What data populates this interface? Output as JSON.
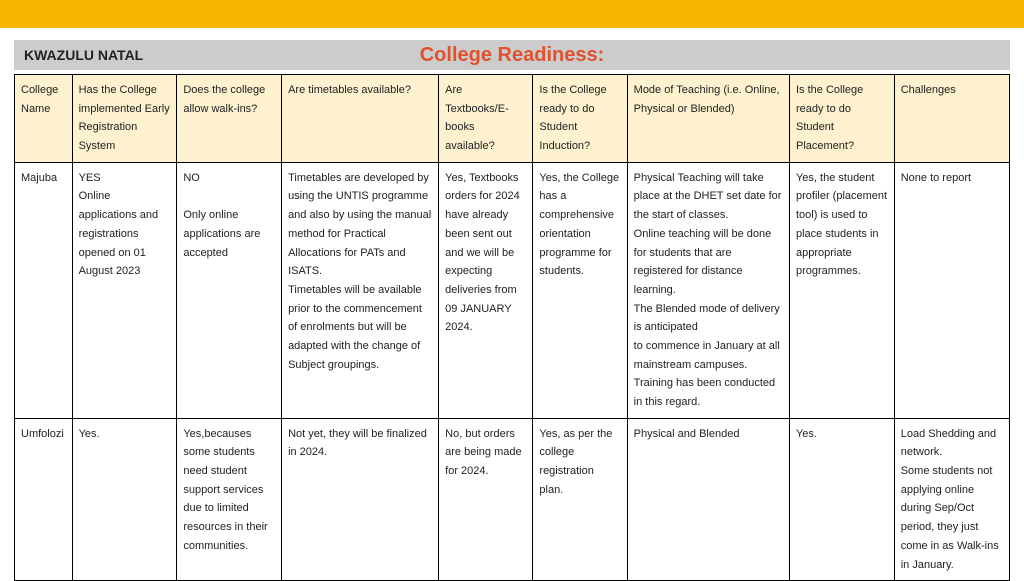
{
  "top_bar_color": "#f7b500",
  "header_bg": "#cccccc",
  "title_color": "#e0522e",
  "th_bg": "#fdf1cf",
  "region": "KWAZULU NATAL",
  "title": "College Readiness:",
  "columns": [
    "College Name",
    "Has the College implemented Early Registration System",
    "Does the college allow walk-ins?",
    "Are timetables available?",
    "Are Textbooks/E-books available?",
    "Is the College ready to do Student Induction?",
    "Mode of Teaching (i.e. Online, Physical or Blended)",
    "Is the College ready to do Student Placement?",
    "Challenges"
  ],
  "rows": [
    {
      "c0": "Majuba",
      "c1": "YES\nOnline applications and registrations opened on 01 August 2023",
      "c2": "NO\n\nOnly online applications are accepted",
      "c3": "Timetables are developed by using the UNTIS programme and also by using the manual method for Practical Allocations for PATs and ISATS.\nTimetables will be available prior to the commencement of enrolments but will be adapted with the change of Subject groupings.",
      "c4": "Yes, Textbooks orders for 2024 have already been sent out and we will be expecting deliveries from 09 JANUARY 2024.",
      "c5": "Yes, the College has a comprehensive orientation programme for students.",
      "c6": "Physical Teaching will take place at the DHET set date for the start of classes.\nOnline teaching will be done for students that are registered for distance learning.\nThe Blended mode of delivery is anticipated\nto commence in January at all mainstream campuses. Training has been conducted in this regard.",
      "c7": "Yes, the student profiler (placement tool) is used to place students in appropriate programmes.",
      "c8": "None to report"
    },
    {
      "c0": "Umfolozi",
      "c1": "Yes.",
      "c2": "Yes,becauses some students need student support services due to limited resources in their communities.",
      "c3": "Not yet, they will be finalized in 2024.",
      "c4": "No, but orders are being made for 2024.",
      "c5": " Yes, as per the college registration plan.",
      "c6": "Physical and Blended",
      "c7": "Yes.",
      "c8": "Load Shedding and network.\nSome students not applying online during Sep/Oct period, they just come in as Walk-ins in January."
    }
  ]
}
